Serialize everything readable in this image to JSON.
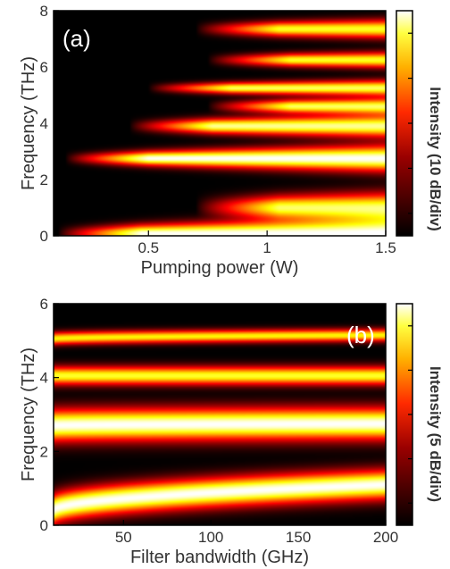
{
  "chart_data": [
    {
      "type": "heatmap",
      "panel_label": "(a)",
      "xlabel": "Pumping power (W)",
      "ylabel": "Frequency (THz)",
      "colorbar_label": "Intensity (10 dB/div)",
      "xlim": [
        0.1,
        1.5
      ],
      "ylim": [
        0,
        8
      ],
      "xticks": [
        {
          "value": 0.5,
          "label": "0.5"
        },
        {
          "value": 1,
          "label": "1"
        },
        {
          "value": 1.5,
          "label": "1.5"
        }
      ],
      "yticks": [
        {
          "value": 0,
          "label": "0"
        },
        {
          "value": 2,
          "label": "2"
        },
        {
          "value": 4,
          "label": "4"
        },
        {
          "value": 6,
          "label": "6"
        },
        {
          "value": 8,
          "label": "8"
        }
      ],
      "colorbar_ticks": 5,
      "colormap": "hot",
      "bands": [
        {
          "center": 0.08,
          "width": 0.35,
          "onset_x": 0.12,
          "strength": 1.0
        },
        {
          "center": 1.0,
          "width": 0.32,
          "onset_x": 0.7,
          "strength": 0.85
        },
        {
          "center": 2.75,
          "width": 0.28,
          "onset_x": 0.15,
          "strength": 1.0
        },
        {
          "center": 3.9,
          "width": 0.24,
          "onset_x": 0.42,
          "strength": 0.9
        },
        {
          "center": 4.6,
          "width": 0.18,
          "onset_x": 0.75,
          "strength": 0.85
        },
        {
          "center": 5.25,
          "width": 0.17,
          "onset_x": 0.5,
          "strength": 0.85
        },
        {
          "center": 6.25,
          "width": 0.17,
          "onset_x": 0.75,
          "strength": 0.8
        },
        {
          "center": 7.35,
          "width": 0.2,
          "onset_x": 0.7,
          "strength": 0.8
        }
      ]
    },
    {
      "type": "heatmap",
      "panel_label": "(b)",
      "xlabel": "Filter bandwidth (GHz)",
      "ylabel": "Frequency (THz)",
      "colorbar_label": "Intensity (5 dB/div)",
      "xlim": [
        10,
        200
      ],
      "ylim": [
        0,
        6
      ],
      "xticks": [
        {
          "value": 50,
          "label": "50"
        },
        {
          "value": 100,
          "label": "100"
        },
        {
          "value": 150,
          "label": "150"
        },
        {
          "value": 200,
          "label": "200"
        }
      ],
      "yticks": [
        {
          "value": 0,
          "label": "0"
        },
        {
          "value": 2,
          "label": "2"
        },
        {
          "value": 4,
          "label": "4"
        },
        {
          "value": 6,
          "label": "6"
        }
      ],
      "colorbar_ticks": 5,
      "colormap": "hot",
      "bands": [
        {
          "center_start": 0.4,
          "center_end": 1.1,
          "width": 0.35,
          "strength": 1.0
        },
        {
          "center_start": 2.7,
          "center_end": 2.75,
          "width": 0.38,
          "strength": 1.0
        },
        {
          "center_start": 4.05,
          "center_end": 4.05,
          "width": 0.22,
          "strength": 0.8
        },
        {
          "center_start": 5.05,
          "center_end": 5.15,
          "width": 0.15,
          "strength": 0.75
        }
      ]
    }
  ]
}
